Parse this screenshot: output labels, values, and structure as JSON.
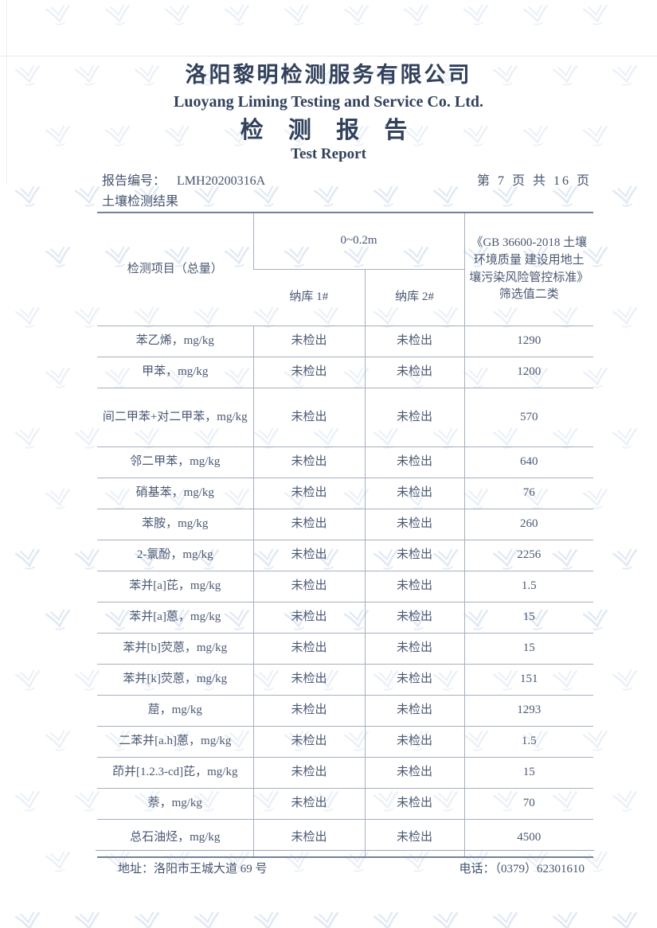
{
  "header": {
    "company_cn": "洛阳黎明检测服务有限公司",
    "company_en": "Luoyang Liming Testing and Service Co. Ltd.",
    "title_cn": "检 测 报 告",
    "title_en": "Test Report",
    "report_no_label": "报告编号：",
    "report_no_value": "LMH20200316A",
    "page_info": "第 7 页 共 16 页",
    "section_title": "土壤检测结果"
  },
  "table": {
    "header": {
      "item_col": "检测项目（总量）",
      "depth_col": "0~0.2m",
      "sample1": "纳库 1#",
      "sample2": "纳库 2#",
      "standard": "《GB 36600-2018 土壤环境质量 建设用地土壤污染风险管控标准》筛选值二类"
    },
    "rows": [
      {
        "item": "苯乙烯，mg/kg",
        "s1": "未检出",
        "s2": "未检出",
        "limit": "1290"
      },
      {
        "item": "甲苯，mg/kg",
        "s1": "未检出",
        "s2": "未检出",
        "limit": "1200"
      },
      {
        "item": "间二甲苯+对二甲苯，mg/kg",
        "s1": "未检出",
        "s2": "未检出",
        "limit": "570"
      },
      {
        "item": "邻二甲苯，mg/kg",
        "s1": "未检出",
        "s2": "未检出",
        "limit": "640"
      },
      {
        "item": "硝基苯，mg/kg",
        "s1": "未检出",
        "s2": "未检出",
        "limit": "76"
      },
      {
        "item": "苯胺，mg/kg",
        "s1": "未检出",
        "s2": "未检出",
        "limit": "260"
      },
      {
        "item": "2-氯酚，mg/kg",
        "s1": "未检出",
        "s2": "未检出",
        "limit": "2256"
      },
      {
        "item": "苯并[a]芘，mg/kg",
        "s1": "未检出",
        "s2": "未检出",
        "limit": "1.5"
      },
      {
        "item": "苯并[a]蒽，mg/kg",
        "s1": "未检出",
        "s2": "未检出",
        "limit": "15"
      },
      {
        "item": "苯并[b]荧蒽，mg/kg",
        "s1": "未检出",
        "s2": "未检出",
        "limit": "15"
      },
      {
        "item": "苯并[k]荧蒽，mg/kg",
        "s1": "未检出",
        "s2": "未检出",
        "limit": "151"
      },
      {
        "item": "䓛，mg/kg",
        "s1": "未检出",
        "s2": "未检出",
        "limit": "1293"
      },
      {
        "item": "二苯并[a.h]蒽，mg/kg",
        "s1": "未检出",
        "s2": "未检出",
        "limit": "1.5"
      },
      {
        "item": "茚并[1.2.3-cd]芘，mg/kg",
        "s1": "未检出",
        "s2": "未检出",
        "limit": "15"
      },
      {
        "item": "萘，mg/kg",
        "s1": "未检出",
        "s2": "未检出",
        "limit": "70"
      },
      {
        "item": "总石油烃，mg/kg",
        "s1": "未检出",
        "s2": "未检出",
        "limit": "4500"
      }
    ]
  },
  "footer": {
    "address_label": "地址：",
    "address_value": "洛阳市王城大道 69 号",
    "phone_label": "电话：",
    "phone_value": "（0379）62301610"
  },
  "colors": {
    "ink": "#44536e",
    "title_ink": "#32415c",
    "table_border_light": "#a6b0bf",
    "table_border_dark": "#74819a",
    "watermark": "#dde6f2"
  },
  "icons": {
    "watermark_logo": "liming-chevron-logo-watermark-icon"
  }
}
